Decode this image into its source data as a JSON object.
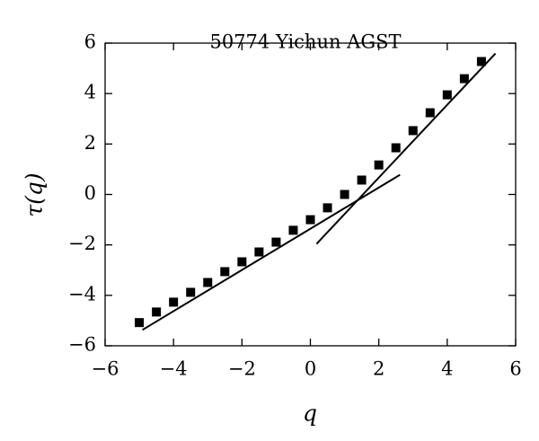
{
  "chart_data": {
    "type": "scatter",
    "title": "50774 Yichun AGST",
    "xlabel": "q",
    "ylabel": "τ(q)",
    "xlim": [
      -6,
      6
    ],
    "ylim": [
      -6,
      6
    ],
    "xticks": [
      {
        "value": -6,
        "label": "−6"
      },
      {
        "value": -4,
        "label": "−4"
      },
      {
        "value": -2,
        "label": "−2"
      },
      0,
      2,
      4,
      6
    ],
    "yticks": [
      {
        "value": -6,
        "label": "−6"
      },
      {
        "value": -4,
        "label": "−4"
      },
      {
        "value": -2,
        "label": "−2"
      },
      0,
      2,
      4,
      6
    ],
    "series": [
      {
        "style": "marker",
        "color": "#000000",
        "x": [
          -5,
          -4.5,
          -4,
          -3.5,
          -3,
          -2.5,
          -2,
          -1.5,
          -1,
          -0.5,
          0,
          0.5,
          1,
          1.5,
          2,
          2.5,
          3,
          3.5,
          4,
          4.5,
          5
        ],
        "values": [
          -5.08,
          -4.66,
          -4.27,
          -3.88,
          -3.49,
          -3.06,
          -2.67,
          -2.28,
          -1.89,
          -1.42,
          -1.0,
          -0.53,
          0,
          0.57,
          1.17,
          1.85,
          2.53,
          3.24,
          3.95,
          4.59,
          5.27
        ]
      },
      {
        "style": "line",
        "color": "#000000",
        "x": [
          -4.91,
          2.62
        ],
        "values": [
          -5.37,
          0.78
        ]
      },
      {
        "style": "line",
        "color": "#000000",
        "x": [
          0.18,
          5.41
        ],
        "values": [
          -1.96,
          5.59
        ]
      }
    ]
  }
}
